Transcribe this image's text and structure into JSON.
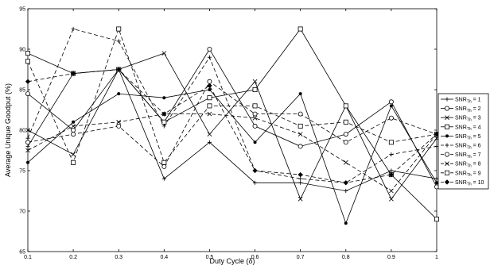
{
  "chart_data": {
    "type": "line",
    "title": "",
    "xlabel": "Duty Cycle (δ)",
    "ylabel": "Average Unique Goodput (%)",
    "xlim": [
      0.1,
      1
    ],
    "ylim": [
      65,
      95
    ],
    "x": [
      0.1,
      0.2,
      0.3,
      0.4,
      0.5,
      0.6,
      0.7,
      0.8,
      0.9,
      1
    ],
    "xticks": [
      "0.1",
      "0.2",
      "0.3",
      "0.4",
      "0.5",
      "0.6",
      "0.7",
      "0.8",
      "0.9",
      "1"
    ],
    "yticks": [
      "65",
      "70",
      "75",
      "80",
      "85",
      "90",
      "95"
    ],
    "grid": false,
    "legend_position": "right",
    "series": [
      {
        "name": "SNR_Th = 1",
        "marker": "plus",
        "dash": "solid",
        "values": [
          78.0,
          87.0,
          87.5,
          74.0,
          78.5,
          73.5,
          73.5,
          72.5,
          75.0,
          74.0
        ]
      },
      {
        "name": "SNR_Th = 2",
        "marker": "circle",
        "dash": "solid",
        "values": [
          84.5,
          80.0,
          87.5,
          81.0,
          90.0,
          80.5,
          78.0,
          79.5,
          83.5,
          73.0
        ]
      },
      {
        "name": "SNR_Th = 3",
        "marker": "x",
        "dash": "solid",
        "values": [
          80.0,
          77.0,
          87.5,
          89.5,
          79.5,
          86.0,
          71.5,
          83.0,
          71.5,
          79.0
        ]
      },
      {
        "name": "SNR_Th = 4",
        "marker": "square",
        "dash": "solid",
        "values": [
          89.5,
          87.0,
          87.5,
          81.0,
          84.0,
          85.0,
          92.5,
          83.0,
          74.5,
          69.0
        ]
      },
      {
        "name": "SNR_Th = 5",
        "marker": "dot",
        "dash": "solid",
        "values": [
          76.0,
          81.0,
          84.5,
          84.0,
          85.0,
          78.5,
          84.5,
          68.5,
          83.0,
          73.5
        ]
      },
      {
        "name": "SNR_Th = 6",
        "marker": "plus",
        "dash": "dashed",
        "values": [
          79.0,
          92.5,
          91.0,
          80.5,
          89.0,
          75.0,
          74.0,
          73.5,
          77.0,
          78.0
        ]
      },
      {
        "name": "SNR_Th = 7",
        "marker": "circle",
        "dash": "dashed",
        "values": [
          78.5,
          79.5,
          80.5,
          75.5,
          86.0,
          82.0,
          82.0,
          78.5,
          81.5,
          79.5
        ]
      },
      {
        "name": "SNR_Th = 8",
        "marker": "x",
        "dash": "dashed",
        "values": [
          77.5,
          80.5,
          81.0,
          82.0,
          82.0,
          81.5,
          79.5,
          76.0,
          72.5,
          79.5
        ]
      },
      {
        "name": "SNR_Th = 9",
        "marker": "square",
        "dash": "dashed",
        "values": [
          88.5,
          76.0,
          92.5,
          76.0,
          83.0,
          83.0,
          80.5,
          81.0,
          78.5,
          79.5
        ]
      },
      {
        "name": "SNR_Th = 10",
        "marker": "diamond-filled",
        "dash": "dashed",
        "values": [
          86.0,
          87.0,
          87.5,
          82.0,
          85.5,
          75.0,
          74.5,
          73.5,
          74.5,
          79.5
        ]
      }
    ],
    "legend_entries": [
      {
        "prefix": "SNR",
        "sub": "Th",
        "suffix": " = 1"
      },
      {
        "prefix": "SNR",
        "sub": "Th",
        "suffix": " = 2"
      },
      {
        "prefix": "SNR",
        "sub": "Th",
        "suffix": " = 3"
      },
      {
        "prefix": "SNR",
        "sub": "Th",
        "suffix": " = 4"
      },
      {
        "prefix": "SNR",
        "sub": "Th",
        "suffix": " = 5"
      },
      {
        "prefix": "SNR",
        "sub": "Th",
        "suffix": " = 6"
      },
      {
        "prefix": "SNR",
        "sub": "Th",
        "suffix": " = 7"
      },
      {
        "prefix": "SNR",
        "sub": "Th",
        "suffix": " = 8"
      },
      {
        "prefix": "SNR",
        "sub": "Th",
        "suffix": " = 9"
      },
      {
        "prefix": "SNR",
        "sub": "Th",
        "suffix": " = 10"
      }
    ],
    "colors": {
      "line": "#000000",
      "background": "#ffffff",
      "axes": "#000000"
    }
  }
}
